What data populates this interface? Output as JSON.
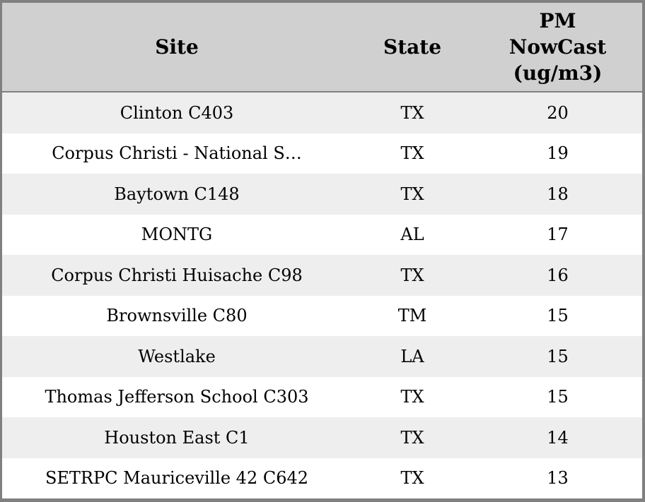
{
  "table": {
    "columns": [
      {
        "label": "Site"
      },
      {
        "label": "State"
      },
      {
        "label": "PM\nNowCast\n(ug/m3)"
      }
    ],
    "rows": [
      {
        "site": "Clinton C403",
        "state": "TX",
        "pm": "20"
      },
      {
        "site": "Corpus Christi - National S…",
        "state": "TX",
        "pm": "19"
      },
      {
        "site": "Baytown C148",
        "state": "TX",
        "pm": "18"
      },
      {
        "site": "MONTG",
        "state": "AL",
        "pm": "17"
      },
      {
        "site": "Corpus Christi Huisache C98",
        "state": "TX",
        "pm": "16"
      },
      {
        "site": "Brownsville C80",
        "state": "TM",
        "pm": "15"
      },
      {
        "site": "Westlake",
        "state": "LA",
        "pm": "15"
      },
      {
        "site": "Thomas Jefferson School C303",
        "state": "TX",
        "pm": "15"
      },
      {
        "site": "Houston East C1",
        "state": "TX",
        "pm": "14"
      },
      {
        "site": "SETRPC Mauriceville 42 C642",
        "state": "TX",
        "pm": "13"
      }
    ]
  },
  "colors": {
    "header_bg": "#d0d0d0",
    "row_alt_bg": "#eeeeee",
    "row_bg": "#ffffff",
    "border": "#808080",
    "text": "#000000"
  }
}
